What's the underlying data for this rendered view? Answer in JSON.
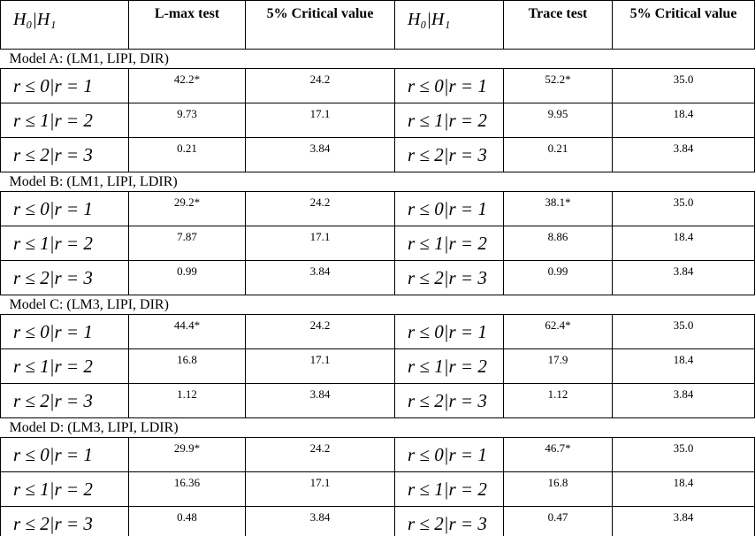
{
  "table": {
    "header": [
      "H₀|H₁",
      "L-max test",
      "5% Critical value",
      "H₀|H₁",
      "Trace test",
      "5% Critical value"
    ],
    "groups": [
      {
        "label": "Model A: (LM1, LIPI, DIR)",
        "rows": [
          [
            "r ≤ 0|r = 1",
            "42.2*",
            "24.2",
            "r ≤ 0|r = 1",
            "52.2*",
            "35.0"
          ],
          [
            "r ≤ 1|r = 2",
            "9.73",
            "17.1",
            "r ≤ 1|r = 2",
            "9.95",
            "18.4"
          ],
          [
            "r ≤ 2|r = 3",
            "0.21",
            "3.84",
            "r ≤ 2|r = 3",
            "0.21",
            "3.84"
          ]
        ]
      },
      {
        "label": "Model B: (LM1, LIPI, LDIR)",
        "rows": [
          [
            "r ≤ 0|r = 1",
            "29.2*",
            "24.2",
            "r ≤ 0|r = 1",
            "38.1*",
            "35.0"
          ],
          [
            "r ≤ 1|r = 2",
            "7.87",
            "17.1",
            "r ≤ 1|r = 2",
            "8.86",
            "18.4"
          ],
          [
            "r ≤ 2|r = 3",
            "0.99",
            "3.84",
            "r ≤ 2|r = 3",
            "0.99",
            "3.84"
          ]
        ]
      },
      {
        "label": "Model C: (LM3, LIPI, DIR)",
        "rows": [
          [
            "r ≤ 0|r = 1",
            "44.4*",
            "24.2",
            "r ≤ 0|r = 1",
            "62.4*",
            "35.0"
          ],
          [
            "r ≤ 1|r = 2",
            "16.8",
            "17.1",
            "r ≤ 1|r = 2",
            "17.9",
            "18.4"
          ],
          [
            "r ≤ 2|r = 3",
            "1.12",
            "3.84",
            "r ≤ 2|r = 3",
            "1.12",
            "3.84"
          ]
        ]
      },
      {
        "label": "Model D: (LM3, LIPI, LDIR)",
        "rows": [
          [
            "r ≤ 0|r = 1",
            "29.9*",
            "24.2",
            "r ≤ 0|r = 1",
            "46.7*",
            "35.0"
          ],
          [
            "r ≤ 1|r = 2",
            "16.36",
            "17.1",
            "r ≤ 1|r = 2",
            "16.8",
            "18.4"
          ],
          [
            "r ≤ 2|r = 3",
            "0.48",
            "3.84",
            "r ≤ 2|r = 3",
            "0.47",
            "3.84"
          ]
        ]
      }
    ]
  }
}
